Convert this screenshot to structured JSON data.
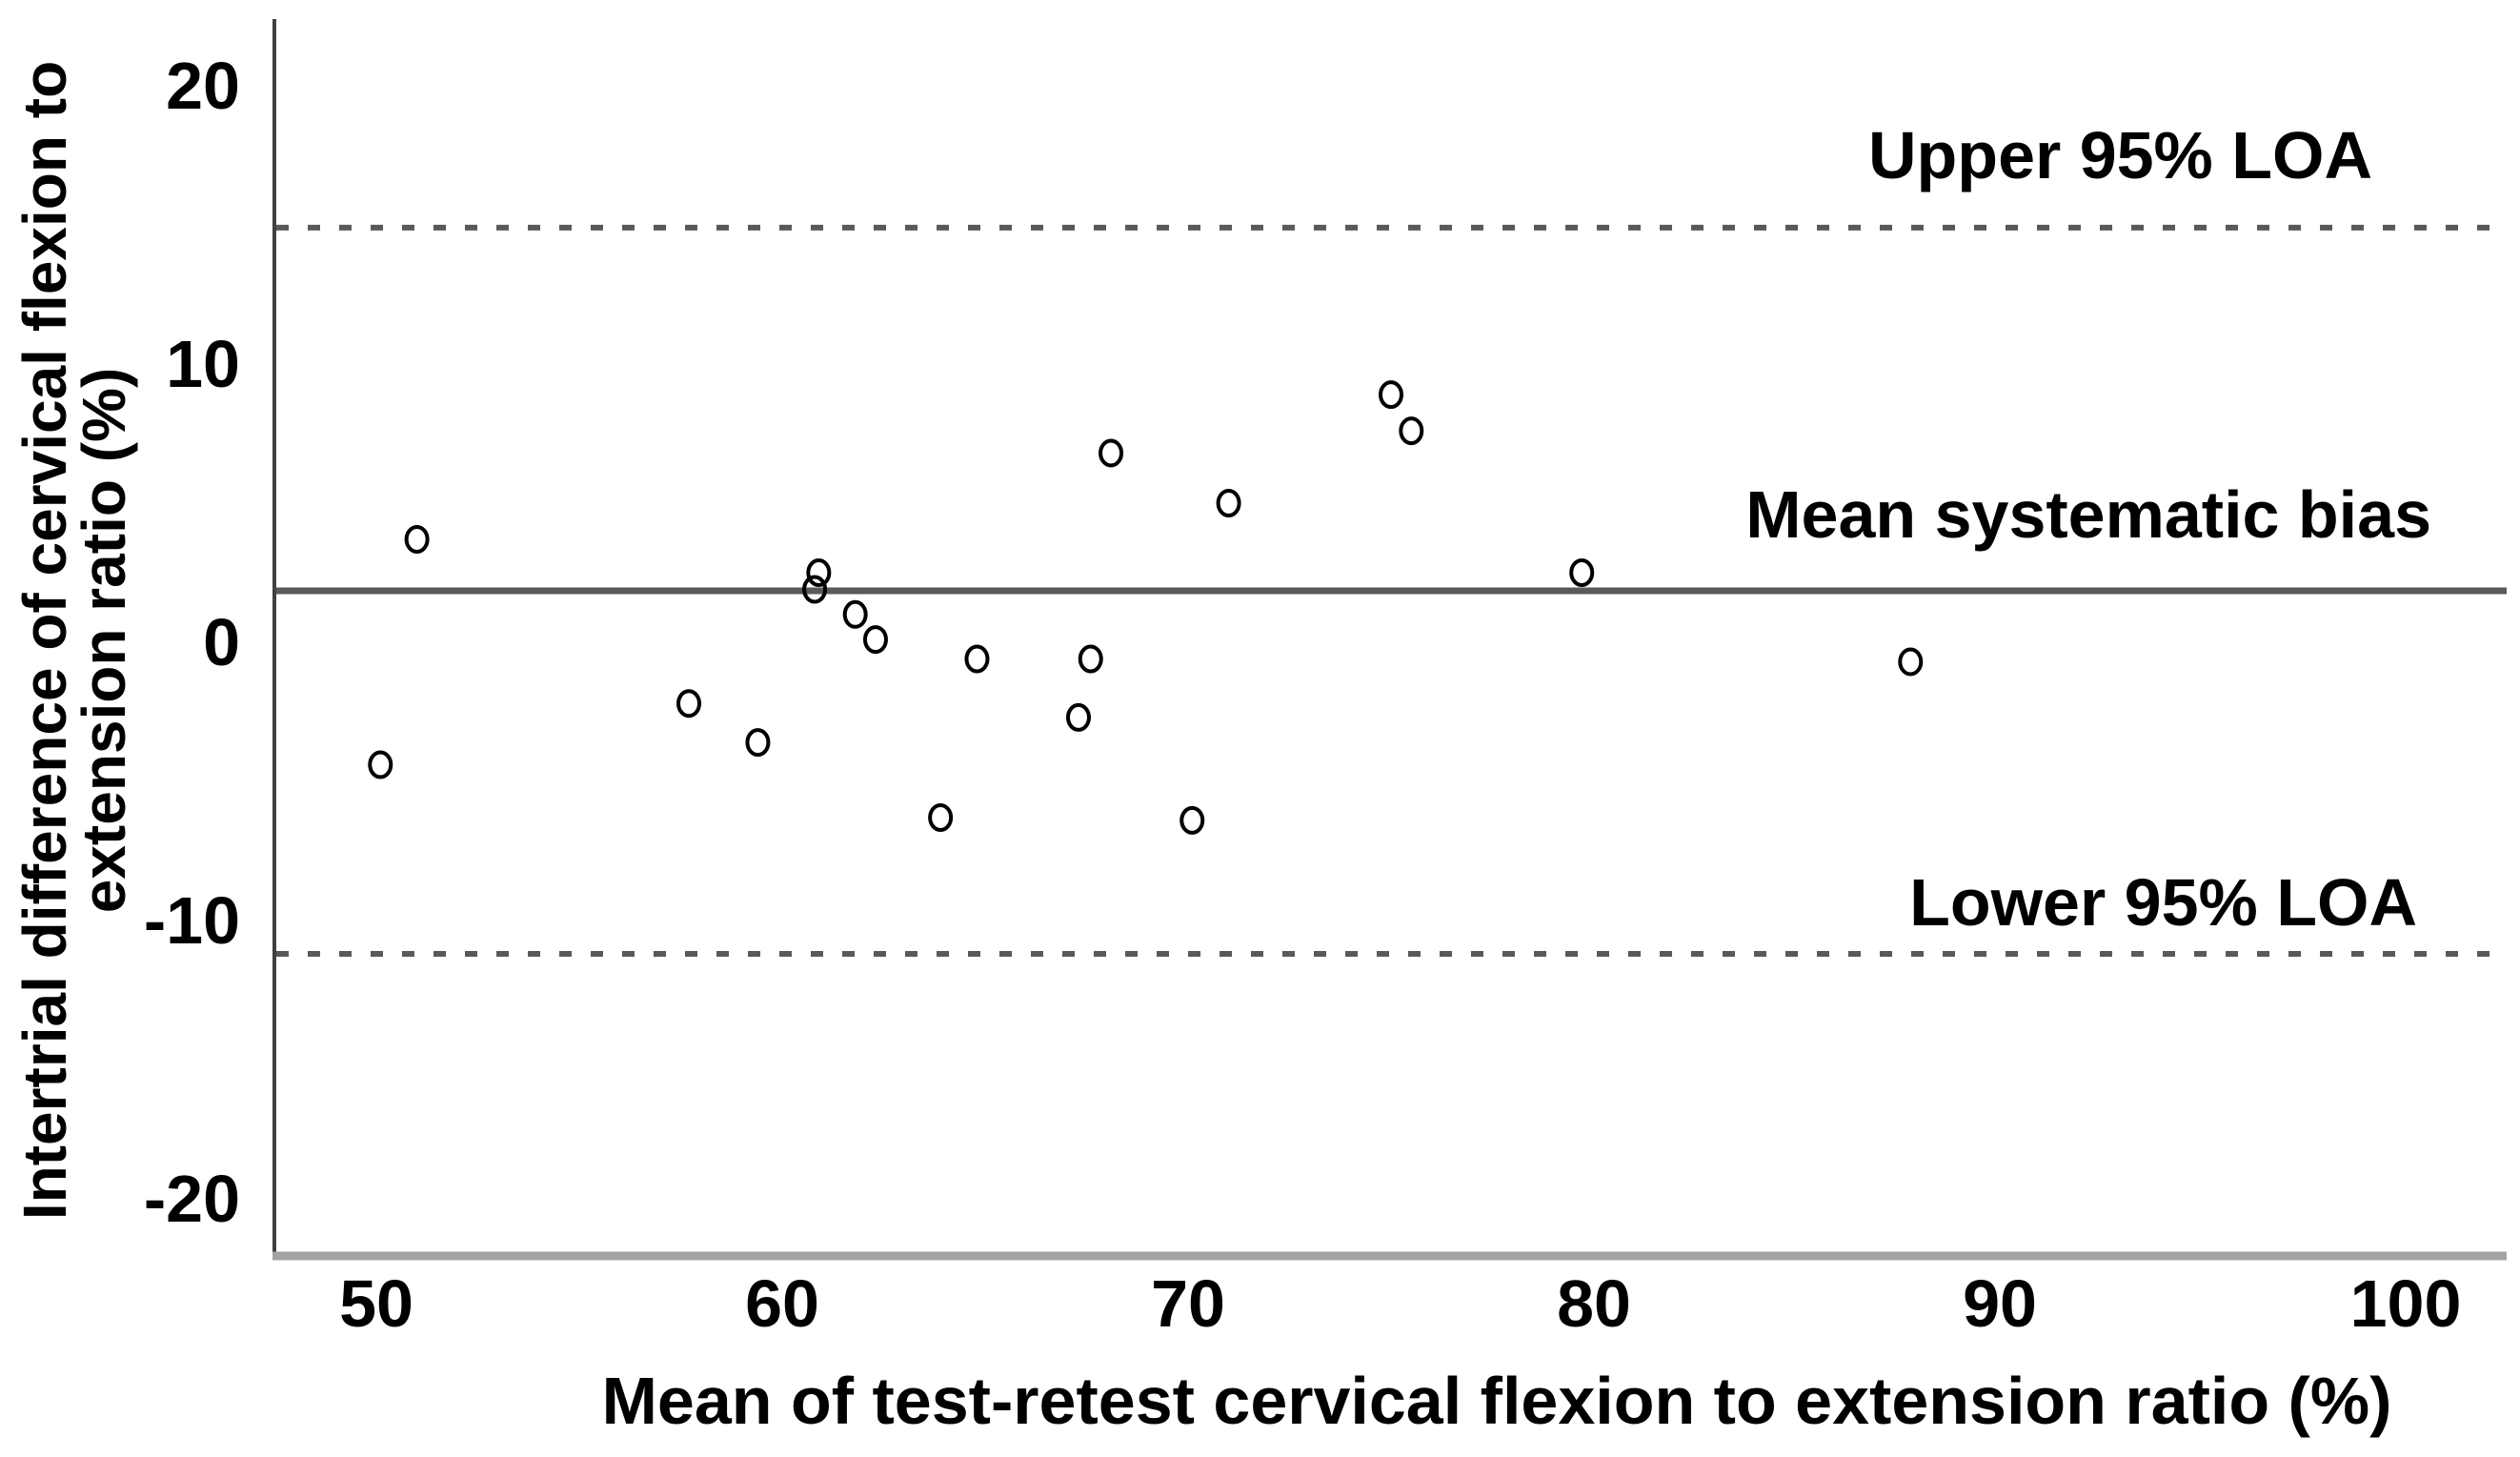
{
  "figure": {
    "background": "#ffffff"
  },
  "chart_data": {
    "type": "scatter",
    "title": "",
    "xlabel": "Mean of test-retest cervical flexion to extension ratio (%)",
    "ylabel_line1": "Intertrial difference of cervical flexion to",
    "ylabel_line2": "extension ratio (%)",
    "x_ticks": [
      50,
      60,
      70,
      80,
      90,
      100
    ],
    "y_ticks": [
      20,
      10,
      0,
      -10,
      -20
    ],
    "xlim": [
      47.5,
      102.5
    ],
    "ylim": [
      -22.2,
      22.4
    ],
    "grid": false,
    "marker": "open-circle",
    "points": [
      {
        "x": 50.1,
        "y": -4.4
      },
      {
        "x": 51.0,
        "y": 3.7
      },
      {
        "x": 57.7,
        "y": -2.2
      },
      {
        "x": 59.4,
        "y": -3.6
      },
      {
        "x": 60.8,
        "y": 1.9
      },
      {
        "x": 60.9,
        "y": 2.5
      },
      {
        "x": 61.8,
        "y": 1.0
      },
      {
        "x": 62.3,
        "y": 0.1
      },
      {
        "x": 63.9,
        "y": -6.3
      },
      {
        "x": 64.8,
        "y": -0.6
      },
      {
        "x": 67.3,
        "y": -2.7
      },
      {
        "x": 67.6,
        "y": -0.6
      },
      {
        "x": 68.1,
        "y": 6.8
      },
      {
        "x": 70.1,
        "y": -6.4
      },
      {
        "x": 71.0,
        "y": 5.0
      },
      {
        "x": 75.0,
        "y": 8.9
      },
      {
        "x": 75.5,
        "y": 7.6
      },
      {
        "x": 79.7,
        "y": 2.5
      },
      {
        "x": 87.8,
        "y": -0.7
      }
    ],
    "reference_lines": [
      {
        "id": "upper_loa",
        "value": 14.9,
        "label": "Upper 95% LOA",
        "style": "dashed"
      },
      {
        "id": "mean_bias",
        "value": 1.85,
        "label": "Mean systematic bias",
        "style": "solid"
      },
      {
        "id": "lower_loa",
        "value": -11.2,
        "label": "Lower 95% LOA",
        "style": "dashed"
      }
    ],
    "colors": {
      "marker_stroke": "#000000",
      "reference_line": "#595959",
      "y_axis_line": "#404040",
      "x_axis_line": "#a3a3a3",
      "text": "#000000",
      "background": "#ffffff"
    }
  }
}
